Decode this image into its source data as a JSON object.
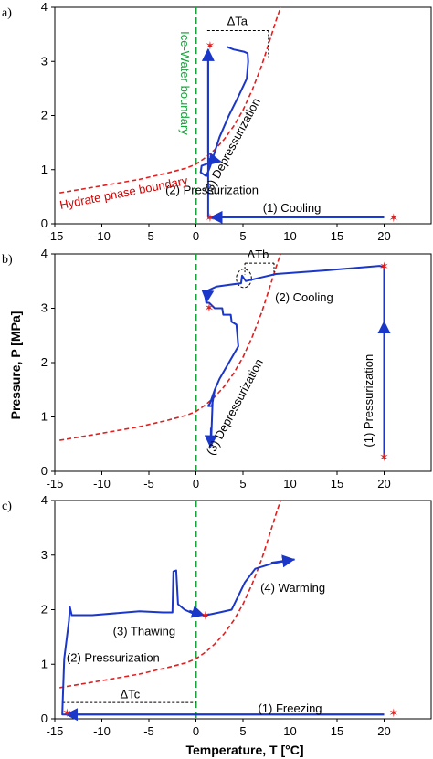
{
  "figure": {
    "ylabel": "Pressure, P [MPa]",
    "xlabel": "Temperature, T [°C]"
  },
  "colors": {
    "path": "#1a37c9",
    "hydrate": "#e02020",
    "ice_water": "#1aa13d",
    "marker": "#e02020"
  },
  "chart_data": [
    {
      "panel": "a)",
      "type": "line",
      "xlim": [
        -15,
        25
      ],
      "ylim": [
        0,
        4
      ],
      "xticks": [
        -15,
        -10,
        -5,
        0,
        5,
        10,
        15,
        20
      ],
      "yticks": [
        0,
        1,
        2,
        3,
        4
      ],
      "hydrate_boundary_label": "Hydrate phase boundary",
      "ice_water_label": "Ice-Water boundary",
      "hydrate_boundary": [
        [
          -14.5,
          0.57
        ],
        [
          -10,
          0.7
        ],
        [
          -6,
          0.82
        ],
        [
          -3,
          0.94
        ],
        [
          -1,
          1.03
        ],
        [
          0,
          1.1
        ],
        [
          1,
          1.22
        ],
        [
          2,
          1.37
        ],
        [
          3,
          1.56
        ],
        [
          4,
          1.8
        ],
        [
          5,
          2.1
        ],
        [
          6,
          2.48
        ],
        [
          7,
          2.93
        ],
        [
          8,
          3.47
        ],
        [
          8.5,
          3.75
        ],
        [
          9,
          4.0
        ]
      ],
      "path": [
        [
          20,
          0.12
        ],
        [
          1.5,
          0.12
        ],
        [
          1.3,
          0.12
        ],
        [
          1.3,
          3.2
        ],
        [
          1.3,
          1.05
        ],
        [
          1.4,
          1.12
        ],
        [
          0.6,
          1.07
        ],
        [
          0.5,
          0.95
        ],
        [
          1.1,
          0.88
        ],
        [
          1.5,
          1.05
        ],
        [
          2.5,
          1.6
        ],
        [
          3.5,
          2.0
        ],
        [
          4.5,
          2.35
        ],
        [
          5.4,
          2.68
        ],
        [
          5.55,
          3.0
        ],
        [
          5.5,
          3.15
        ],
        [
          5.1,
          3.18
        ],
        [
          4.0,
          3.22
        ],
        [
          3.3,
          3.27
        ]
      ],
      "arrows": [
        {
          "from": [
            20,
            0.12
          ],
          "to": [
            1.6,
            0.12
          ]
        },
        {
          "from": [
            1.3,
            1.3
          ],
          "to": [
            1.3,
            3.22
          ]
        },
        {
          "from": [
            1.3,
            1.2
          ],
          "to": [
            2.6,
            1.15
          ]
        }
      ],
      "markers": [
        [
          1.5,
          3.3
        ],
        [
          1.5,
          0.12
        ],
        [
          21,
          0.12
        ]
      ],
      "delta": {
        "label": "ΔTa",
        "x1": 1.2,
        "x2": 7.7,
        "y": 3.57,
        "label_x": 4.4,
        "label_y": 3.67
      },
      "delta_vline": [
        [
          7.7,
          3.57
        ],
        [
          7.7,
          3.08
        ]
      ],
      "annotations": [
        {
          "text": "(1) Cooling",
          "x": 10.2,
          "y": 0.22
        },
        {
          "text": "(2) Pressurization",
          "x": 1.7,
          "y": 0.55
        },
        {
          "text": "(3) Depressurization",
          "x": 4.2,
          "y": 1.4,
          "rotate": -62
        }
      ]
    },
    {
      "panel": "b)",
      "type": "line",
      "xlim": [
        -15,
        25
      ],
      "ylim": [
        0,
        4
      ],
      "xticks": [
        -15,
        -10,
        -5,
        0,
        5,
        10,
        15,
        20
      ],
      "yticks": [
        0,
        1,
        2,
        3,
        4
      ],
      "hydrate_boundary": [
        [
          -14.5,
          0.57
        ],
        [
          -10,
          0.7
        ],
        [
          -6,
          0.82
        ],
        [
          -3,
          0.94
        ],
        [
          -1,
          1.03
        ],
        [
          0,
          1.1
        ],
        [
          1,
          1.22
        ],
        [
          2,
          1.37
        ],
        [
          3,
          1.56
        ],
        [
          4,
          1.8
        ],
        [
          5,
          2.1
        ],
        [
          6,
          2.48
        ],
        [
          7,
          2.93
        ],
        [
          8,
          3.47
        ],
        [
          8.5,
          3.75
        ],
        [
          9,
          4.0
        ]
      ],
      "path": [
        [
          20,
          0.27
        ],
        [
          20,
          3.76
        ],
        [
          19.5,
          3.78
        ],
        [
          14,
          3.7
        ],
        [
          8.5,
          3.63
        ],
        [
          6.5,
          3.55
        ],
        [
          5.3,
          3.5
        ],
        [
          4.9,
          3.6
        ],
        [
          4.8,
          3.46
        ],
        [
          3.5,
          3.43
        ],
        [
          2.2,
          3.4
        ],
        [
          1.3,
          3.33
        ],
        [
          1.0,
          3.2
        ],
        [
          1.1,
          3.1
        ],
        [
          1.4,
          3.1
        ],
        [
          2.0,
          3.0
        ],
        [
          2.8,
          3.0
        ],
        [
          2.9,
          2.88
        ],
        [
          3.7,
          2.88
        ],
        [
          3.8,
          2.75
        ],
        [
          4.3,
          2.7
        ],
        [
          4.5,
          2.3
        ],
        [
          3.5,
          2.0
        ],
        [
          2.5,
          1.7
        ],
        [
          2.0,
          1.5
        ],
        [
          1.5,
          1.25
        ],
        [
          1.3,
          1.2
        ],
        [
          1.7,
          1.2
        ],
        [
          2.0,
          1.5
        ],
        [
          1.8,
          1.4
        ],
        [
          1.6,
          0.5
        ]
      ],
      "arrows": [
        {
          "from": [
            20,
            0.27
          ],
          "to": [
            20,
            2.75
          ]
        },
        {
          "from": [
            1.2,
            3.22
          ],
          "to": [
            1.15,
            3.12
          ]
        },
        {
          "from": [
            1.6,
            0.8
          ],
          "to": [
            1.55,
            0.45
          ]
        }
      ],
      "markers": [
        [
          1.4,
          3.02
        ],
        [
          20,
          3.78
        ],
        [
          20,
          0.27
        ]
      ],
      "delta": {
        "label": "ΔTb",
        "x1": 5.2,
        "x2": 8.3,
        "y": 3.83,
        "label_x": 6.6,
        "label_y": 3.92
      },
      "delta_vline": [
        [
          8.3,
          3.83
        ],
        [
          8.3,
          3.65
        ],
        [
          5.2,
          3.83
        ],
        [
          5.2,
          3.62
        ]
      ],
      "circle": {
        "cx": 5.1,
        "cy": 3.55,
        "rx": 0.8,
        "ry": 0.17
      },
      "annotations": [
        {
          "text": "(2) Cooling",
          "x": 11.5,
          "y": 3.13
        },
        {
          "text": "(1) Pressurization",
          "x": 18.8,
          "y": 1.3,
          "rotate": -90
        },
        {
          "text": "(3) Depressurization",
          "x": 4.5,
          "y": 1.15,
          "rotate": -62
        }
      ]
    },
    {
      "panel": "c)",
      "type": "line",
      "xlim": [
        -15,
        25
      ],
      "ylim": [
        0,
        4
      ],
      "xticks": [
        -15,
        -10,
        -5,
        0,
        5,
        10,
        15,
        20
      ],
      "yticks": [
        0,
        1,
        2,
        3,
        4
      ],
      "hydrate_boundary": [
        [
          -14.5,
          0.57
        ],
        [
          -10,
          0.7
        ],
        [
          -6,
          0.82
        ],
        [
          -3,
          0.94
        ],
        [
          -1,
          1.03
        ],
        [
          0,
          1.1
        ],
        [
          1,
          1.22
        ],
        [
          2,
          1.37
        ],
        [
          3,
          1.56
        ],
        [
          4,
          1.8
        ],
        [
          5,
          2.1
        ],
        [
          6,
          2.48
        ],
        [
          7,
          2.93
        ],
        [
          8,
          3.47
        ],
        [
          8.5,
          3.75
        ],
        [
          9,
          4.0
        ]
      ],
      "path": [
        [
          20,
          0.08
        ],
        [
          -14.2,
          0.08
        ],
        [
          -14.2,
          0.1
        ],
        [
          -14.0,
          1.1
        ],
        [
          -13.5,
          1.8
        ],
        [
          -13.4,
          2.05
        ],
        [
          -13.2,
          1.9
        ],
        [
          -11,
          1.9
        ],
        [
          -6,
          1.97
        ],
        [
          -3.5,
          1.95
        ],
        [
          -2.5,
          1.95
        ],
        [
          -2.4,
          2.7
        ],
        [
          -2.1,
          2.72
        ],
        [
          -1.9,
          2.1
        ],
        [
          -1.2,
          2.0
        ],
        [
          0.1,
          1.9
        ],
        [
          1.1,
          1.9
        ],
        [
          2.5,
          1.95
        ],
        [
          3.8,
          2.0
        ],
        [
          5.2,
          2.5
        ],
        [
          6.3,
          2.75
        ],
        [
          8.2,
          2.85
        ],
        [
          10.5,
          2.92
        ]
      ],
      "arrows": [
        {
          "from": [
            20,
            0.08
          ],
          "to": [
            -13.8,
            0.08
          ]
        },
        {
          "from": [
            -0.7,
            1.98
          ],
          "to": [
            0.8,
            1.9
          ]
        },
        {
          "from": [
            8.0,
            2.86
          ],
          "to": [
            10.4,
            2.92
          ]
        }
      ],
      "markers": [
        [
          -13.7,
          0.12
        ],
        [
          1.0,
          1.9
        ],
        [
          21,
          0.12
        ]
      ],
      "delta": {
        "label": "ΔTc",
        "x1": -14.2,
        "x2": 0,
        "y": 0.3,
        "label_x": -7.0,
        "label_y": 0.38
      },
      "delta_vline": [],
      "annotations": [
        {
          "text": "(1) Freezing",
          "x": 10.0,
          "y": 0.12
        },
        {
          "text": "(2) Pressurization",
          "x": -8.8,
          "y": 1.05
        },
        {
          "text": "(3) Thawing",
          "x": -5.5,
          "y": 1.53
        },
        {
          "text": "(4) Warming",
          "x": 10.3,
          "y": 2.33
        }
      ]
    }
  ]
}
